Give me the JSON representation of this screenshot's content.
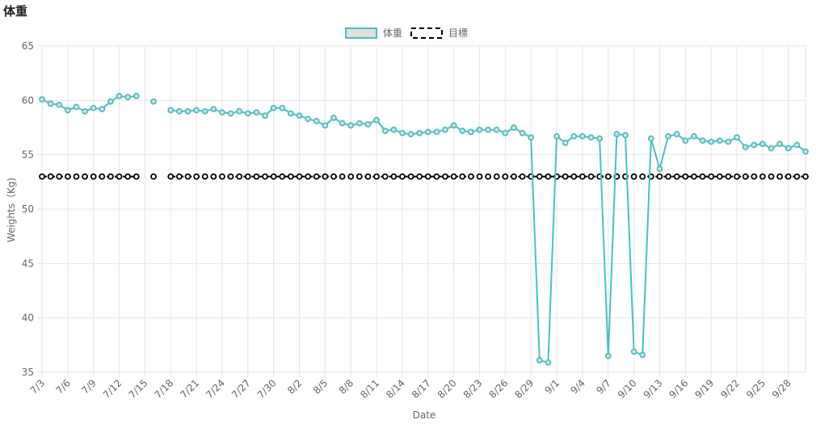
{
  "page": {
    "title": "体重"
  },
  "colors": {
    "weight_line": "#4bc0c0",
    "weight_fill": "#e0e0e0",
    "target_line": "#000000",
    "grid": "#e6e6e6",
    "text": "#666666"
  },
  "chart_data": {
    "type": "line",
    "title": "",
    "xlabel": "Date",
    "ylabel": "Weights（Kg)",
    "ylim": [
      35,
      65
    ],
    "yticks": [
      35,
      40,
      45,
      50,
      55,
      60,
      65
    ],
    "grid": true,
    "legend_position": "top",
    "x": [
      "7/3",
      "7/4",
      "7/5",
      "7/6",
      "7/7",
      "7/8",
      "7/9",
      "7/10",
      "7/11",
      "7/12",
      "7/13",
      "7/14",
      "7/15",
      "7/16",
      "7/17",
      "7/18",
      "7/19",
      "7/20",
      "7/21",
      "7/22",
      "7/23",
      "7/24",
      "7/25",
      "7/26",
      "7/27",
      "7/28",
      "7/29",
      "7/30",
      "7/31",
      "8/1",
      "8/2",
      "8/3",
      "8/4",
      "8/5",
      "8/6",
      "8/7",
      "8/8",
      "8/9",
      "8/10",
      "8/11",
      "8/12",
      "8/13",
      "8/14",
      "8/15",
      "8/16",
      "8/17",
      "8/18",
      "8/19",
      "8/20",
      "8/21",
      "8/22",
      "8/23",
      "8/24",
      "8/25",
      "8/26",
      "8/27",
      "8/28",
      "8/29",
      "8/30",
      "8/31",
      "9/1",
      "9/2",
      "9/3",
      "9/4",
      "9/5",
      "9/6",
      "9/7",
      "9/8",
      "9/9",
      "9/10",
      "9/11",
      "9/12",
      "9/13",
      "9/14",
      "9/15",
      "9/16",
      "9/17",
      "9/18",
      "9/19",
      "9/20",
      "9/21",
      "9/22",
      "9/23",
      "9/24",
      "9/25",
      "9/26",
      "9/27",
      "9/28",
      "9/29",
      "9/30"
    ],
    "x_tick_labels": [
      "7/3",
      "7/6",
      "7/9",
      "7/12",
      "7/15",
      "7/18",
      "7/21",
      "7/24",
      "7/27",
      "7/30",
      "8/2",
      "8/5",
      "8/8",
      "8/11",
      "8/14",
      "8/17",
      "8/20",
      "8/23",
      "8/26",
      "8/29",
      "9/1",
      "9/4",
      "9/7",
      "9/10",
      "9/13",
      "9/16",
      "9/19",
      "9/22",
      "9/25",
      "9/28"
    ],
    "series": [
      {
        "name": "体重",
        "values": [
          60.1,
          59.7,
          59.6,
          59.1,
          59.4,
          59.0,
          59.3,
          59.2,
          59.9,
          60.4,
          60.3,
          60.4,
          null,
          59.9,
          null,
          59.1,
          59.0,
          59.0,
          59.1,
          59.0,
          59.2,
          58.9,
          58.8,
          59.0,
          58.8,
          58.9,
          58.6,
          59.3,
          59.3,
          58.8,
          58.6,
          58.3,
          58.1,
          57.7,
          58.4,
          57.9,
          57.7,
          57.9,
          57.8,
          58.2,
          57.2,
          57.3,
          57.0,
          56.9,
          57.0,
          57.1,
          57.1,
          57.3,
          57.7,
          57.2,
          57.1,
          57.3,
          57.3,
          57.3,
          57.0,
          57.5,
          57.0,
          56.6,
          36.1,
          35.9,
          56.7,
          56.1,
          56.7,
          56.7,
          56.6,
          56.5,
          36.5,
          56.9,
          56.8,
          36.9,
          36.6,
          56.5,
          53.7,
          56.7,
          56.9,
          56.3,
          56.7,
          56.3,
          56.2,
          56.3,
          56.2,
          56.6,
          55.7,
          55.9,
          56.0,
          55.6,
          56.0,
          55.6,
          55.9,
          55.3
        ]
      },
      {
        "name": "目標",
        "values": [
          53,
          53,
          53,
          53,
          53,
          53,
          53,
          53,
          53,
          53,
          53,
          53,
          null,
          53,
          null,
          53,
          53,
          53,
          53,
          53,
          53,
          53,
          53,
          53,
          53,
          53,
          53,
          53,
          53,
          53,
          53,
          53,
          53,
          53,
          53,
          53,
          53,
          53,
          53,
          53,
          53,
          53,
          53,
          53,
          53,
          53,
          53,
          53,
          53,
          53,
          53,
          53,
          53,
          53,
          53,
          53,
          53,
          53,
          53,
          53,
          53,
          53,
          53,
          53,
          53,
          53,
          53,
          53,
          53,
          53,
          53,
          53,
          53,
          53,
          53,
          53,
          53,
          53,
          53,
          53,
          53,
          53,
          53,
          53,
          53,
          53,
          53,
          53,
          53,
          53
        ]
      }
    ]
  }
}
